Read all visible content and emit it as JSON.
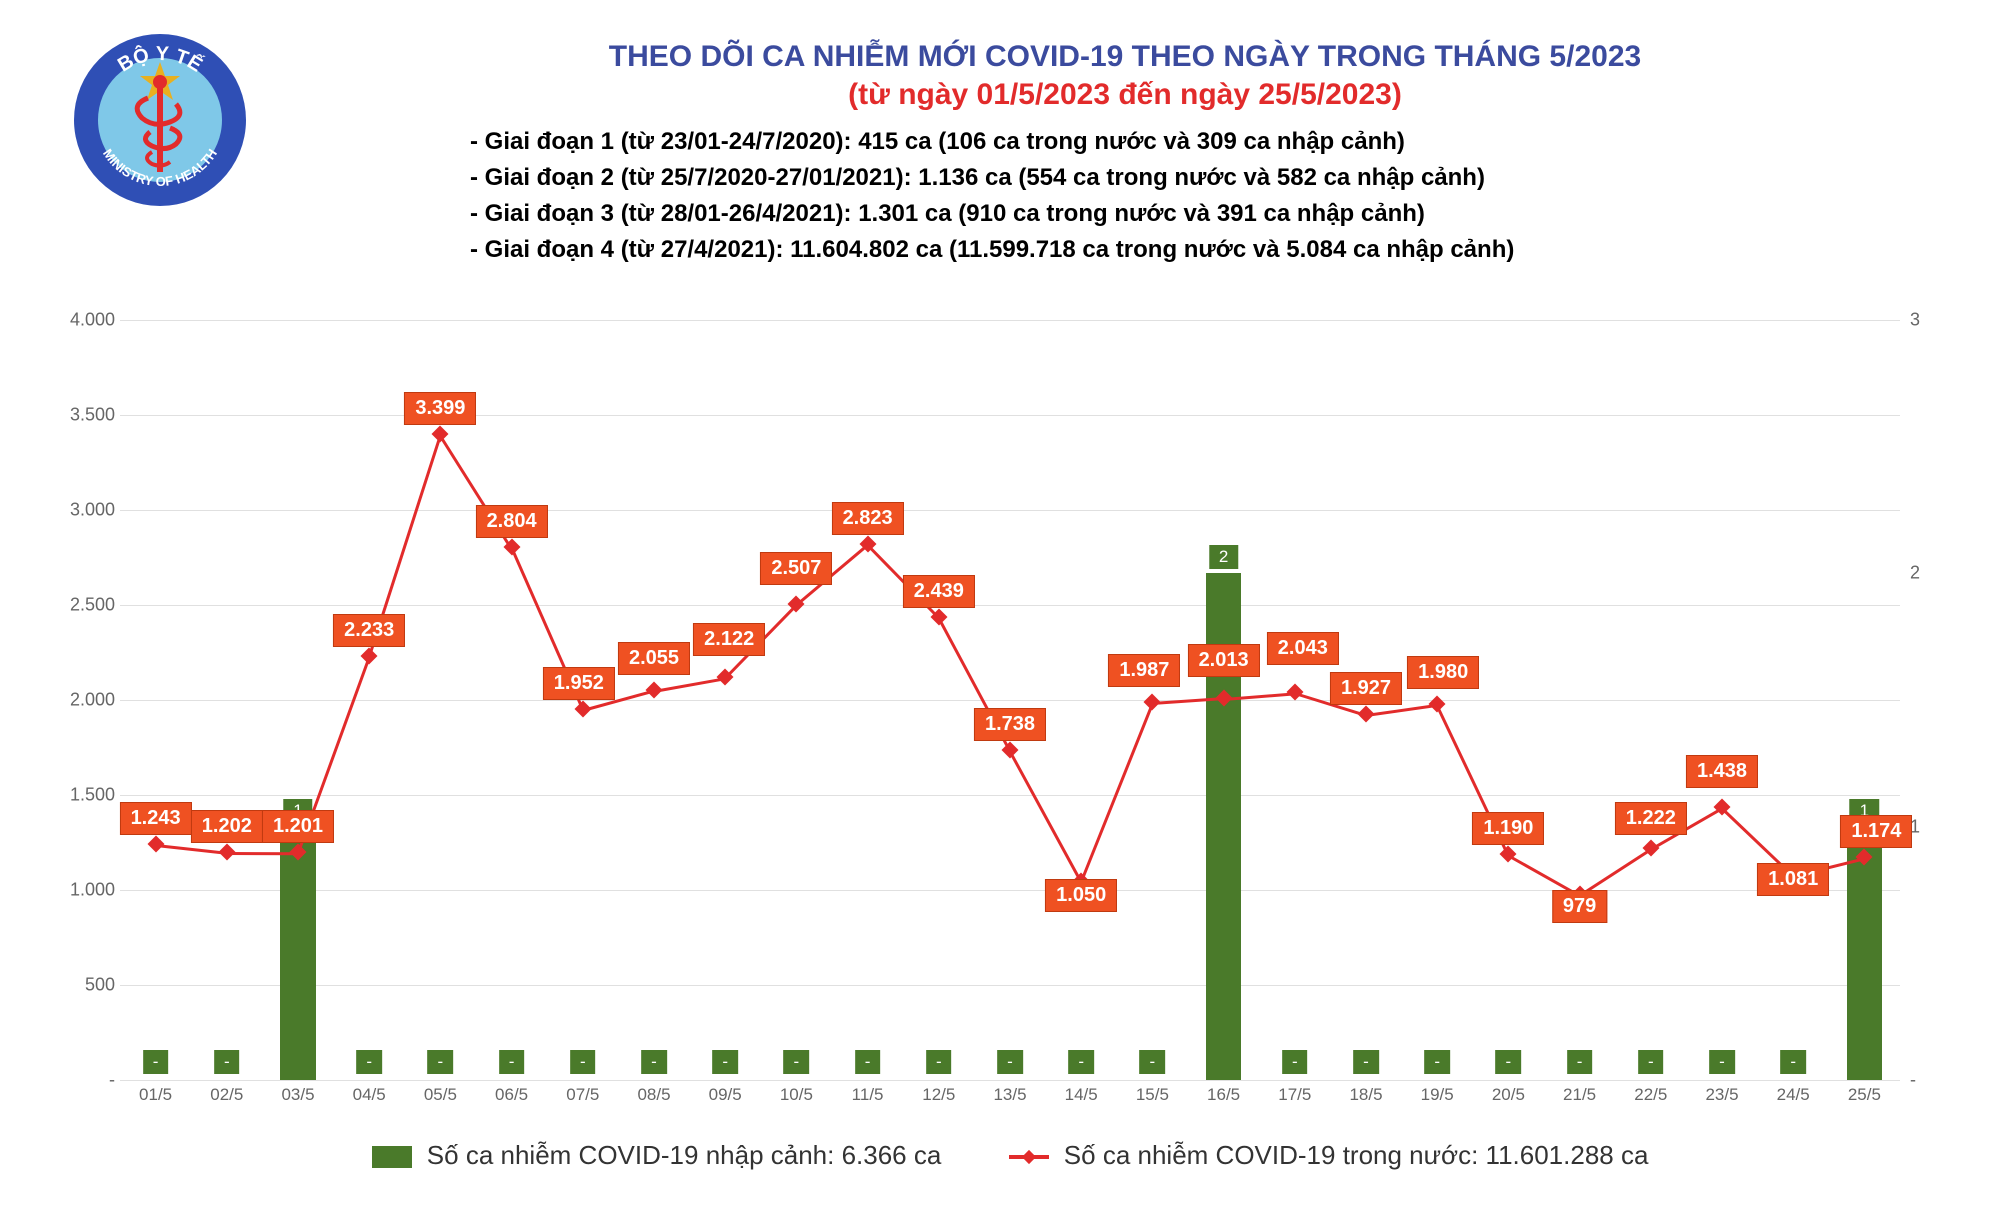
{
  "title": "THEO DÕI CA NHIỄM MỚI COVID-19 THEO NGÀY TRONG THÁNG 5/2023",
  "subtitle": "(từ ngày 01/5/2023 đến ngày 25/5/2023)",
  "notes": [
    "- Giai đoạn 1 (từ 23/01-24/7/2020): 415 ca (106 ca trong nước và 309 ca nhập cảnh)",
    "- Giai đoạn 2 (từ 25/7/2020-27/01/2021): 1.136 ca (554 ca trong nước và 582 ca nhập cảnh)",
    "- Giai đoạn 3 (từ 28/01-26/4/2021): 1.301 ca (910 ca trong nước và 391 ca nhập cảnh)",
    "- Giai đoạn 4 (từ 27/4/2021): 11.604.802 ca (11.599.718 ca trong nước và 5.084 ca nhập cảnh)"
  ],
  "logo": {
    "org_top": "BỘ Y TẾ",
    "org_bottom": "MINISTRY OF HEALTH",
    "ring_color": "#2f4fb5",
    "field_color": "#7fc8e8",
    "star_color": "#e8b020",
    "staff_color": "#e22b2b"
  },
  "chart": {
    "type": "combo-bar-line",
    "categories": [
      "01/5",
      "02/5",
      "03/5",
      "04/5",
      "05/5",
      "06/5",
      "07/5",
      "08/5",
      "09/5",
      "10/5",
      "11/5",
      "12/5",
      "13/5",
      "14/5",
      "15/5",
      "16/5",
      "17/5",
      "18/5",
      "19/5",
      "20/5",
      "21/5",
      "22/5",
      "23/5",
      "24/5",
      "25/5"
    ],
    "line_series": {
      "name": "Số ca nhiễm COVID-19 trong nước: 11.601.288 ca",
      "color": "#e22b2b",
      "label_bg": "#ef5122",
      "values": [
        1243,
        1202,
        1201,
        2233,
        3399,
        2804,
        1952,
        2055,
        2122,
        2507,
        2823,
        2439,
        1738,
        1050,
        1987,
        2013,
        2043,
        1927,
        1980,
        1190,
        979,
        1222,
        1438,
        1081,
        1174
      ],
      "labels": [
        "1.243",
        "1.202",
        "1.201",
        "2.233",
        "3.399",
        "2.804",
        "1.952",
        "2.055",
        "2.122",
        "2.507",
        "2.823",
        "2.439",
        "1.738",
        "1.050",
        "1.987",
        "2.013",
        "2.043",
        "1.927",
        "1.980",
        "1.190",
        "979",
        "1.222",
        "1.438",
        "1.081",
        "1.174"
      ],
      "y_axis": "left"
    },
    "bar_series": {
      "name": "Số ca nhiễm COVID-19 nhập cảnh: 6.366 ca",
      "color": "#4a7a2a",
      "values": [
        0,
        0,
        1,
        0,
        0,
        0,
        0,
        0,
        0,
        0,
        0,
        0,
        0,
        0,
        0,
        2,
        0,
        0,
        0,
        0,
        0,
        0,
        0,
        0,
        1
      ],
      "labels": [
        "-",
        "-",
        "1",
        "-",
        "-",
        "-",
        "-",
        "-",
        "-",
        "-",
        "-",
        "-",
        "-",
        "-",
        "-",
        "2",
        "-",
        "-",
        "-",
        "-",
        "-",
        "-",
        "-",
        "-",
        "1"
      ],
      "y_axis": "right"
    },
    "y_left": {
      "min": 0,
      "max": 4000,
      "step": 500,
      "tick_labels": [
        "-",
        "500",
        "1.000",
        "1.500",
        "2.000",
        "2.500",
        "3.000",
        "3.500",
        "4.000"
      ]
    },
    "y_right": {
      "min": 0,
      "max": 3,
      "step": 1,
      "tick_labels": [
        "-",
        "1",
        "2",
        "3"
      ]
    },
    "plot_bg": "#ffffff",
    "grid_color": "#e0e0e0",
    "bar_width": 0.5,
    "label_fontsize": 20,
    "axis_fontsize": 18
  },
  "legend": {
    "items": [
      {
        "type": "bar",
        "label": "Số ca nhiễm COVID-19 nhập cảnh: 6.366 ca"
      },
      {
        "type": "line",
        "label": "Số ca nhiễm COVID-19 trong nước: 11.601.288 ca"
      }
    ]
  }
}
